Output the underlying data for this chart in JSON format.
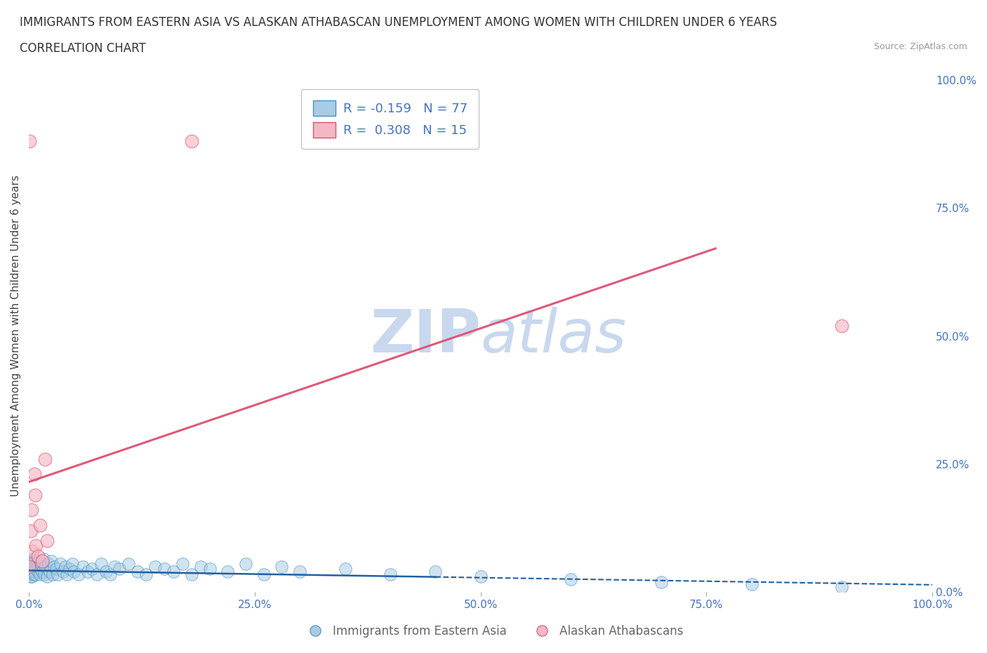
{
  "title_line1": "IMMIGRANTS FROM EASTERN ASIA VS ALASKAN ATHABASCAN UNEMPLOYMENT AMONG WOMEN WITH CHILDREN UNDER 6 YEARS",
  "title_line2": "CORRELATION CHART",
  "source_text": "Source: ZipAtlas.com",
  "ylabel": "Unemployment Among Women with Children Under 6 years",
  "xlim": [
    0.0,
    1.0
  ],
  "ylim": [
    0.0,
    1.0
  ],
  "xtick_labels": [
    "0.0%",
    "25.0%",
    "50.0%",
    "75.0%",
    "100.0%"
  ],
  "xtick_positions": [
    0.0,
    0.25,
    0.5,
    0.75,
    1.0
  ],
  "ytick_labels": [
    "0.0%",
    "25.0%",
    "50.0%",
    "75.0%",
    "100.0%"
  ],
  "ytick_positions_right": [
    0.0,
    0.25,
    0.5,
    0.75,
    1.0
  ],
  "blue_color": "#a8cce4",
  "blue_edge_color": "#4a90c4",
  "pink_color": "#f4b8c4",
  "pink_edge_color": "#e05070",
  "blue_line_color": "#2060a0",
  "pink_line_color": "#e05878",
  "grid_color": "#cccccc",
  "watermark_color": "#c8d8ee",
  "bg_color": "#ffffff",
  "blue_line_intercept": 0.042,
  "blue_line_slope": -0.028,
  "blue_line_solid_end": 0.45,
  "pink_line_intercept": 0.215,
  "pink_line_slope": 0.6,
  "pink_line_end": 0.76,
  "title_fontsize": 12,
  "subtitle_fontsize": 12,
  "axis_label_fontsize": 11,
  "legend_fontsize": 13,
  "blue_scatter_x": [
    0.0,
    0.001,
    0.001,
    0.002,
    0.002,
    0.002,
    0.003,
    0.003,
    0.004,
    0.004,
    0.005,
    0.005,
    0.006,
    0.006,
    0.007,
    0.007,
    0.008,
    0.009,
    0.01,
    0.01,
    0.011,
    0.012,
    0.013,
    0.014,
    0.015,
    0.016,
    0.017,
    0.018,
    0.02,
    0.02,
    0.022,
    0.023,
    0.025,
    0.026,
    0.028,
    0.03,
    0.032,
    0.035,
    0.038,
    0.04,
    0.042,
    0.045,
    0.048,
    0.05,
    0.055,
    0.06,
    0.065,
    0.07,
    0.075,
    0.08,
    0.085,
    0.09,
    0.095,
    0.1,
    0.11,
    0.12,
    0.13,
    0.14,
    0.15,
    0.16,
    0.17,
    0.18,
    0.19,
    0.2,
    0.22,
    0.24,
    0.26,
    0.28,
    0.3,
    0.35,
    0.4,
    0.45,
    0.5,
    0.6,
    0.7,
    0.8,
    0.9
  ],
  "blue_scatter_y": [
    0.04,
    0.05,
    0.035,
    0.06,
    0.045,
    0.03,
    0.055,
    0.04,
    0.065,
    0.03,
    0.05,
    0.035,
    0.06,
    0.04,
    0.05,
    0.035,
    0.045,
    0.055,
    0.04,
    0.06,
    0.05,
    0.035,
    0.045,
    0.055,
    0.04,
    0.065,
    0.035,
    0.05,
    0.045,
    0.03,
    0.055,
    0.04,
    0.06,
    0.035,
    0.05,
    0.045,
    0.035,
    0.055,
    0.04,
    0.05,
    0.035,
    0.045,
    0.055,
    0.04,
    0.035,
    0.05,
    0.04,
    0.045,
    0.035,
    0.055,
    0.04,
    0.035,
    0.05,
    0.045,
    0.055,
    0.04,
    0.035,
    0.05,
    0.045,
    0.04,
    0.055,
    0.035,
    0.05,
    0.045,
    0.04,
    0.055,
    0.035,
    0.05,
    0.04,
    0.045,
    0.035,
    0.04,
    0.03,
    0.025,
    0.02,
    0.015,
    0.01
  ],
  "pink_scatter_x": [
    0.0,
    0.001,
    0.002,
    0.003,
    0.004,
    0.006,
    0.007,
    0.008,
    0.01,
    0.012,
    0.015,
    0.018,
    0.02,
    0.18,
    0.9
  ],
  "pink_scatter_y": [
    0.05,
    0.88,
    0.12,
    0.16,
    0.08,
    0.23,
    0.19,
    0.09,
    0.07,
    0.13,
    0.06,
    0.26,
    0.1,
    0.88,
    0.52
  ]
}
